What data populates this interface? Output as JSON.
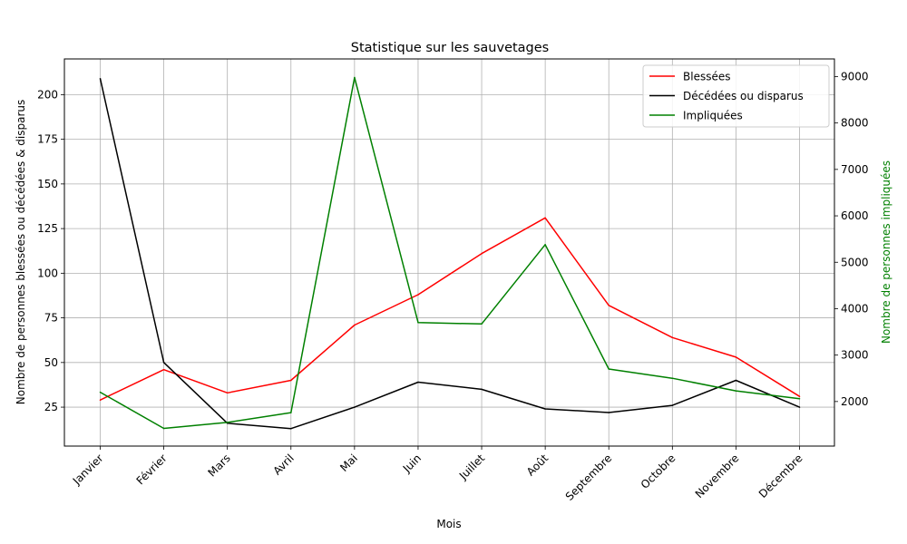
{
  "chart_data": {
    "type": "line",
    "title": "Statistique sur les sauvetages",
    "xlabel": "Mois",
    "ylabel_left": "Nombre de personnes blessées ou décédées & disparus",
    "ylabel_right": "Nombre de personnes impliquées",
    "ylabel_right_color": "#008000",
    "categories": [
      "Janvier",
      "Février",
      "Mars",
      "Avril",
      "Mai",
      "Juin",
      "Juillet",
      "Août",
      "Septembre",
      "Octobre",
      "Novembre",
      "Décembre"
    ],
    "ylim_left": [
      3.2,
      220.0
    ],
    "ylim_right": [
      1040,
      9380
    ],
    "yticks_left": [
      25,
      50,
      75,
      100,
      125,
      150,
      175,
      200
    ],
    "yticks_right": [
      2000,
      3000,
      4000,
      5000,
      6000,
      7000,
      8000,
      9000
    ],
    "grid": true,
    "legend_position": "top-right",
    "series": [
      {
        "name": "Blessées",
        "axis": "left",
        "color": "#ff0000",
        "values": [
          29,
          46,
          33,
          40,
          71,
          88,
          111,
          131,
          82,
          64,
          53,
          31
        ]
      },
      {
        "name": "Décédées ou disparus",
        "axis": "left",
        "color": "#000000",
        "values": [
          209,
          50,
          16,
          13,
          25,
          39,
          35,
          24,
          22,
          26,
          40,
          25
        ]
      },
      {
        "name": "Impliquées",
        "axis": "right",
        "color": "#008000",
        "values": [
          2200,
          1420,
          1550,
          1760,
          8980,
          3700,
          3670,
          5380,
          2700,
          2500,
          2230,
          2060
        ]
      }
    ]
  }
}
